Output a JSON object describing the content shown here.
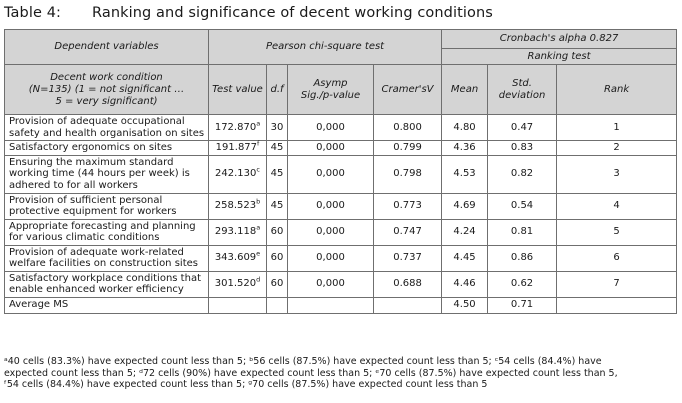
{
  "table_number": "Table 4:",
  "table_title": "Ranking and significance of decent working conditions",
  "headers": {
    "dependent_variables": "Dependent variables",
    "pearson": "Pearson chi-square test",
    "cronbach": "Cronbach's alpha 0.827",
    "ranking_test": "Ranking test",
    "decent_work_line1": "Decent work condition",
    "decent_work_line2": "(N=135) (1 = not significant …",
    "decent_work_line3": "5 = very significant)",
    "test_value": "Test value",
    "df": "d.f",
    "asymp_line1": "Asymp",
    "asymp_line2": "Sig./p-value",
    "cramers": "Cramer'sV",
    "mean": "Mean",
    "std_line1": "Std.",
    "std_line2": "deviation",
    "rank": "Rank"
  },
  "rows": [
    {
      "condition": "Provision of adequate occupational safety and health organisation on sites",
      "test_value": "172.870",
      "sup": "a",
      "df": "30",
      "p": "0,000",
      "cramers": "0.800",
      "mean": "4.80",
      "std": "0.47",
      "rank": "1"
    },
    {
      "condition": "Satisfactory ergonomics on sites",
      "test_value": "191.877",
      "sup": "f",
      "df": "45",
      "p": "0,000",
      "cramers": "0.799",
      "mean": "4.36",
      "std": "0.83",
      "rank": "2"
    },
    {
      "condition": "Ensuring the maximum standard working time (44 hours per week) is adhered to for all workers",
      "test_value": "242.130",
      "sup": "c",
      "df": "45",
      "p": "0,000",
      "cramers": "0.798",
      "mean": "4.53",
      "std": "0.82",
      "rank": "3"
    },
    {
      "condition": "Provision of sufficient personal protective equipment for workers",
      "test_value": "258.523",
      "sup": "b",
      "df": "45",
      "p": "0,000",
      "cramers": "0.773",
      "mean": "4.69",
      "std": "0.54",
      "rank": "4"
    },
    {
      "condition": "Appropriate forecasting and planning for various climatic conditions",
      "test_value": "293.118",
      "sup": "a",
      "df": "60",
      "p": "0,000",
      "cramers": "0.747",
      "mean": "4.24",
      "std": "0.81",
      "rank": "5"
    },
    {
      "condition": "Provision of adequate work-related welfare facilities on construction sites",
      "test_value": "343.609",
      "sup": "e",
      "df": "60",
      "p": "0,000",
      "cramers": "0.737",
      "mean": "4.45",
      "std": "0.86",
      "rank": "6"
    },
    {
      "condition": "Satisfactory workplace conditions that enable enhanced worker efficiency",
      "test_value": "301.520",
      "sup": "d",
      "df": "60",
      "p": "0,000",
      "cramers": "0.688",
      "mean": "4.46",
      "std": "0.62",
      "rank": "7"
    }
  ],
  "average": {
    "label": "Average MS",
    "mean": "4.50",
    "std": "0.71"
  },
  "footnotes": {
    "line1": "ᵃ40 cells (83.3%) have expected count less than 5; ᵇ56 cells (87.5%) have expected count less than 5; ᶜ54 cells (84.4%) have",
    "line2": "expected count less than 5; ᵈ72 cells (90%) have expected count less than 5; ᵉ70 cells (87.5%) have expected count less than 5,",
    "line3": "ᶠ54 cells (84.4%) have expected count less than 5; ᵍ70 cells (87.5%) have expected count less than 5"
  }
}
